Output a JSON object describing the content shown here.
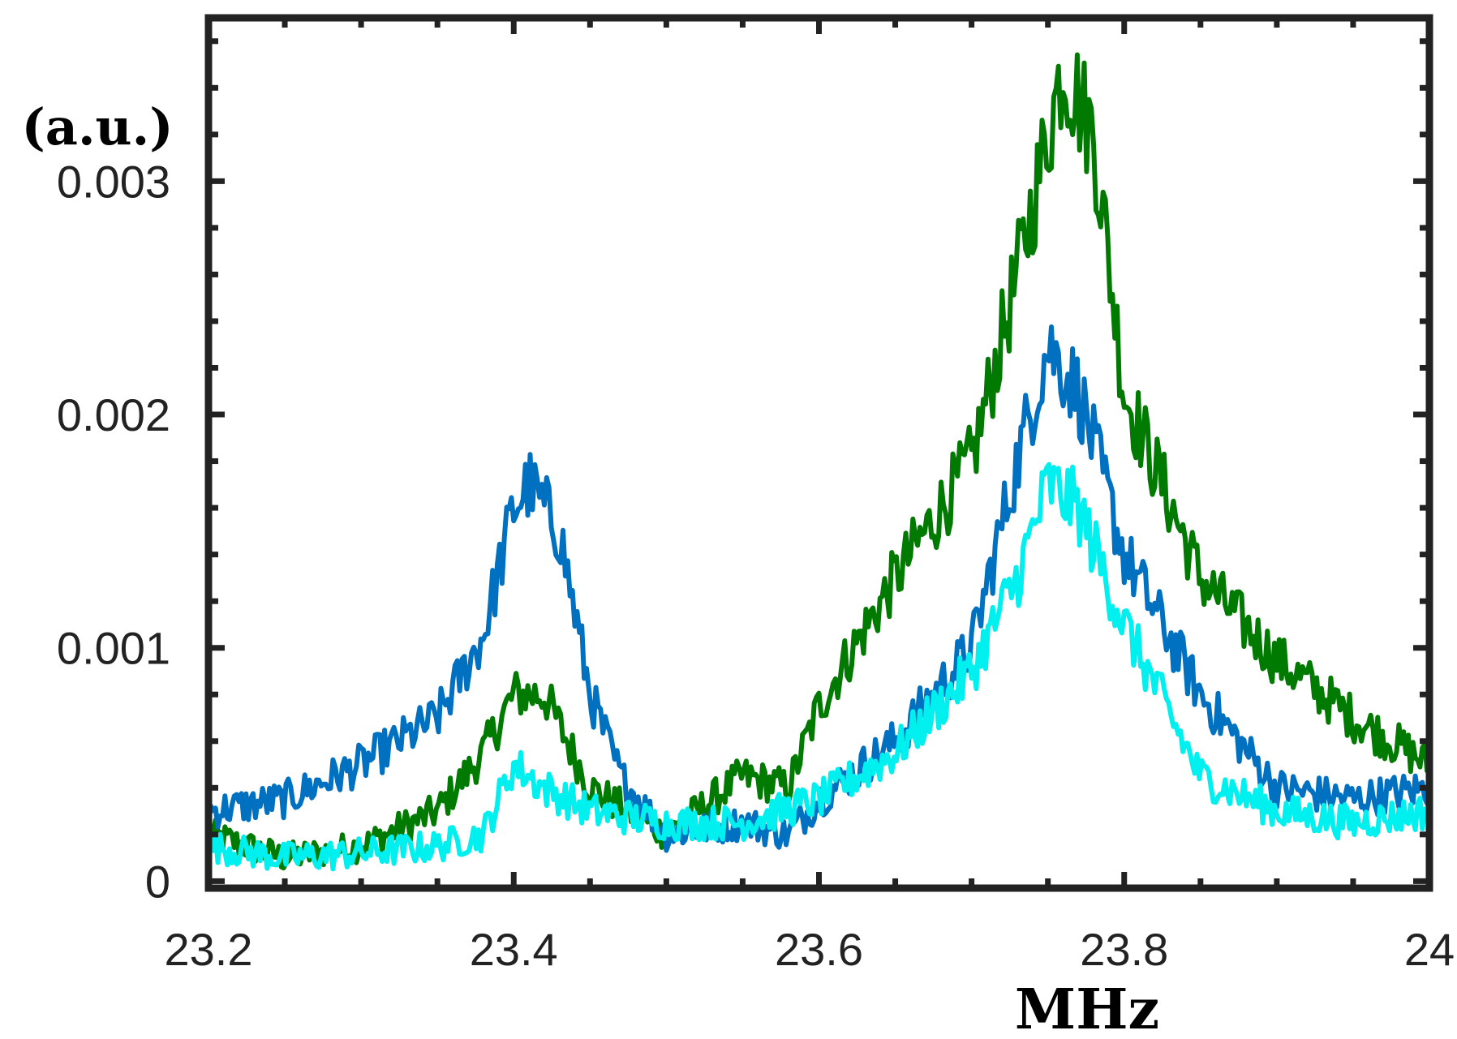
{
  "chart_data": {
    "type": "line",
    "title": "",
    "xlabel": "MHz",
    "ylabel": "(a.u.)",
    "xlim": [
      23.2,
      24.0
    ],
    "ylim": [
      -3e-05,
      0.0037
    ],
    "x_ticks": [
      23.2,
      23.4,
      23.6,
      23.8,
      24.0
    ],
    "x_tick_labels": [
      "23.2",
      "23.4",
      "23.6",
      "23.8",
      "24"
    ],
    "y_ticks": [
      0,
      0.001,
      0.002,
      0.003
    ],
    "y_tick_labels": [
      "0",
      "0.001",
      "0.002",
      "0.003"
    ],
    "grid": false,
    "legend": "none",
    "series": [
      {
        "color": "#007a00",
        "x": [
          23.2,
          23.25,
          23.3,
          23.35,
          23.38,
          23.4,
          23.42,
          23.45,
          23.5,
          23.55,
          23.58,
          23.6,
          23.65,
          23.7,
          23.73,
          23.75,
          23.76,
          23.78,
          23.8,
          23.85,
          23.9,
          23.95,
          24.0
        ],
        "values": [
          0.0002,
          0.0001,
          0.00015,
          0.0003,
          0.00055,
          0.0008,
          0.0008,
          0.0004,
          0.0002,
          0.00045,
          0.0004,
          0.00075,
          0.0013,
          0.0018,
          0.0026,
          0.0032,
          0.0035,
          0.0032,
          0.0021,
          0.0013,
          0.00095,
          0.0007,
          0.0005
        ]
      },
      {
        "color": "#0070c0",
        "x": [
          23.2,
          23.25,
          23.3,
          23.35,
          23.38,
          23.4,
          23.41,
          23.43,
          23.45,
          23.47,
          23.5,
          23.55,
          23.58,
          23.6,
          23.65,
          23.7,
          23.73,
          23.75,
          23.77,
          23.8,
          23.85,
          23.9,
          23.95,
          24.0
        ],
        "values": [
          0.0003,
          0.00035,
          0.0005,
          0.0007,
          0.00105,
          0.0016,
          0.0017,
          0.0015,
          0.0008,
          0.00045,
          0.0002,
          0.00025,
          0.0002,
          0.00035,
          0.0006,
          0.001,
          0.0018,
          0.0023,
          0.0021,
          0.0014,
          0.0008,
          0.0004,
          0.00035,
          0.0004
        ]
      },
      {
        "color": "#00f0f0",
        "x": [
          23.2,
          23.25,
          23.3,
          23.35,
          23.38,
          23.4,
          23.42,
          23.45,
          23.5,
          23.55,
          23.6,
          23.65,
          23.7,
          23.73,
          23.75,
          23.77,
          23.8,
          23.85,
          23.9,
          23.95,
          24.0
        ],
        "values": [
          0.00015,
          0.0001,
          0.00012,
          0.00015,
          0.0002,
          0.0005,
          0.0004,
          0.0003,
          0.00025,
          0.00025,
          0.00035,
          0.00055,
          0.0009,
          0.0013,
          0.0017,
          0.0016,
          0.0011,
          0.00045,
          0.0003,
          0.00025,
          0.0003
        ]
      }
    ]
  }
}
